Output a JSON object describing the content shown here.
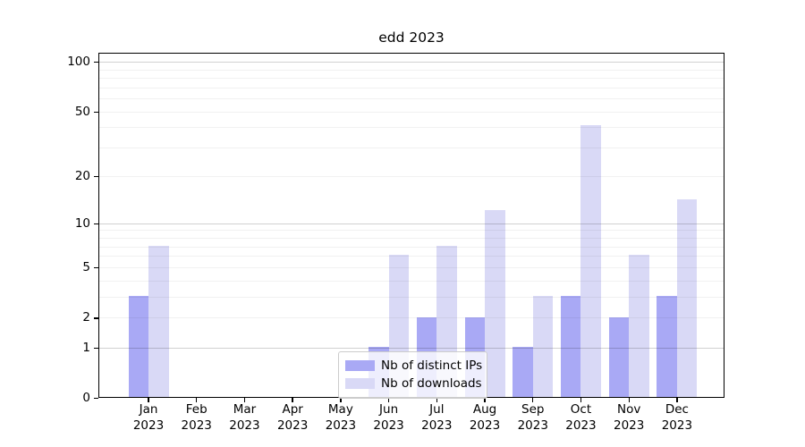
{
  "title": "edd 2023",
  "chart_data": {
    "type": "bar",
    "title": "edd 2023",
    "categories": [
      "Jan 2023",
      "Feb 2023",
      "Mar 2023",
      "Apr 2023",
      "May 2023",
      "Jun 2023",
      "Jul 2023",
      "Aug 2023",
      "Sep 2023",
      "Oct 2023",
      "Nov 2023",
      "Dec 2023"
    ],
    "series": [
      {
        "name": "Nb of distinct IPs",
        "color": "#a9a9f5",
        "values": [
          3,
          0,
          0,
          0,
          0,
          1,
          2,
          2,
          1,
          3,
          2,
          3
        ]
      },
      {
        "name": "Nb of downloads",
        "color": "#d9d9f6",
        "values": [
          7,
          0,
          0,
          0,
          0,
          6,
          7,
          12,
          3,
          41,
          6,
          14
        ]
      }
    ],
    "xlabel": "",
    "ylabel": "",
    "y_axis": {
      "scale": "log1p",
      "tick_values": [
        0,
        1,
        2,
        5,
        10,
        20,
        50,
        100
      ],
      "tick_labels": [
        "0",
        "1",
        "2",
        "5",
        "10",
        "20",
        "50",
        "100"
      ],
      "range": [
        0,
        113
      ]
    },
    "grid": {
      "horizontal": true,
      "minor_values": [
        2,
        3,
        4,
        5,
        6,
        7,
        8,
        9,
        20,
        30,
        40,
        50,
        60,
        70,
        80,
        90
      ],
      "major_values": [
        1,
        10,
        100
      ]
    },
    "legend": {
      "entries": [
        "Nb of distinct IPs",
        "Nb of downloads"
      ],
      "position": "lower center"
    }
  }
}
